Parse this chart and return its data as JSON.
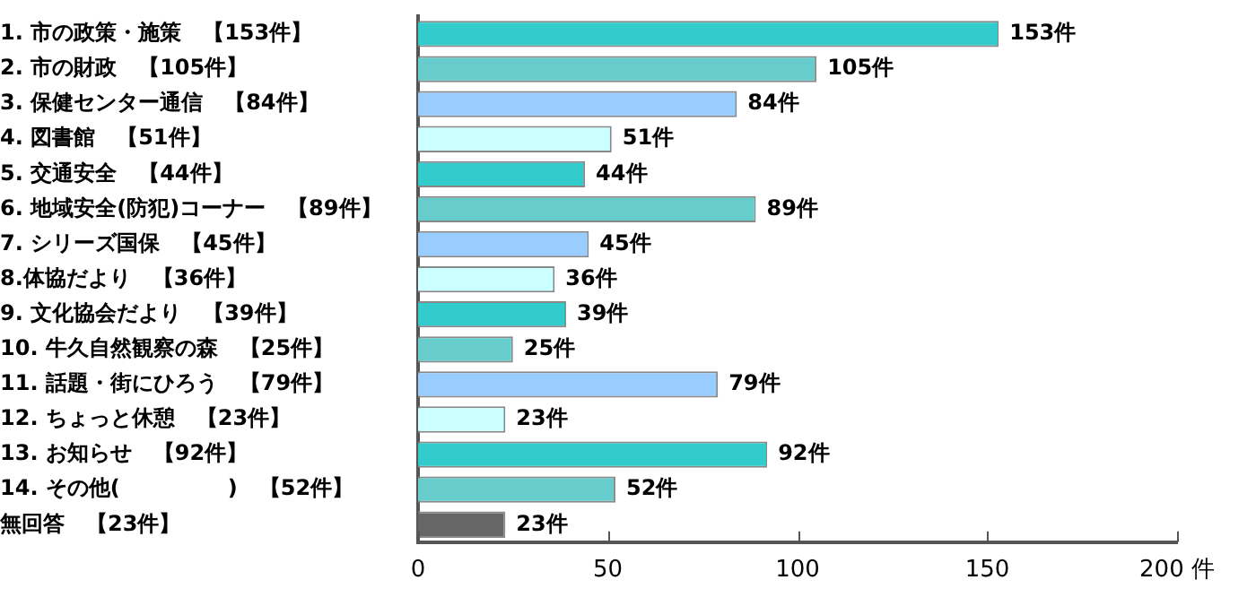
{
  "chart_data": {
    "type": "bar",
    "orientation": "horizontal",
    "categories": [
      "1. 市の政策・施策　【153件】",
      "2. 市の財政　【105件】",
      "3. 保健センター通信　【84件】",
      "4. 図書館　【51件】",
      "5. 交通安全　【44件】",
      "6. 地域安全(防犯)コーナー　【89件】",
      "7. シリーズ国保　【45件】",
      "8.体協だより　【36件】",
      "9. 文化協会だより　【39件】",
      "10. 牛久自然観察の森　【25件】",
      "11. 話題・街にひろう　【79件】",
      "12. ちょっと休憩　【23件】",
      "13. お知らせ　【92件】",
      "14. その他(　　　　　)　【52件】",
      "無回答　【23件】"
    ],
    "values": [
      153,
      105,
      84,
      51,
      44,
      89,
      45,
      36,
      39,
      25,
      79,
      23,
      92,
      52,
      23
    ],
    "colors": [
      "#33cccc",
      "#66cccc",
      "#99ccff",
      "#ccffff",
      "#33cccc",
      "#66cccc",
      "#99ccff",
      "#ccffff",
      "#33cccc",
      "#66cccc",
      "#99ccff",
      "#ccffff",
      "#33cccc",
      "#66cccc",
      "#666666"
    ],
    "value_labels": [
      "153件",
      "105件",
      "84件",
      "51件",
      "44件",
      "89件",
      "45件",
      "36件",
      "39件",
      "25件",
      "79件",
      "23件",
      "92件",
      "52件",
      "23件"
    ],
    "xlim": [
      0,
      200
    ],
    "xticks": [
      0,
      50,
      100,
      150,
      {
        "value": 200,
        "label": "200 件"
      }
    ],
    "grid": false,
    "legend": false
  }
}
